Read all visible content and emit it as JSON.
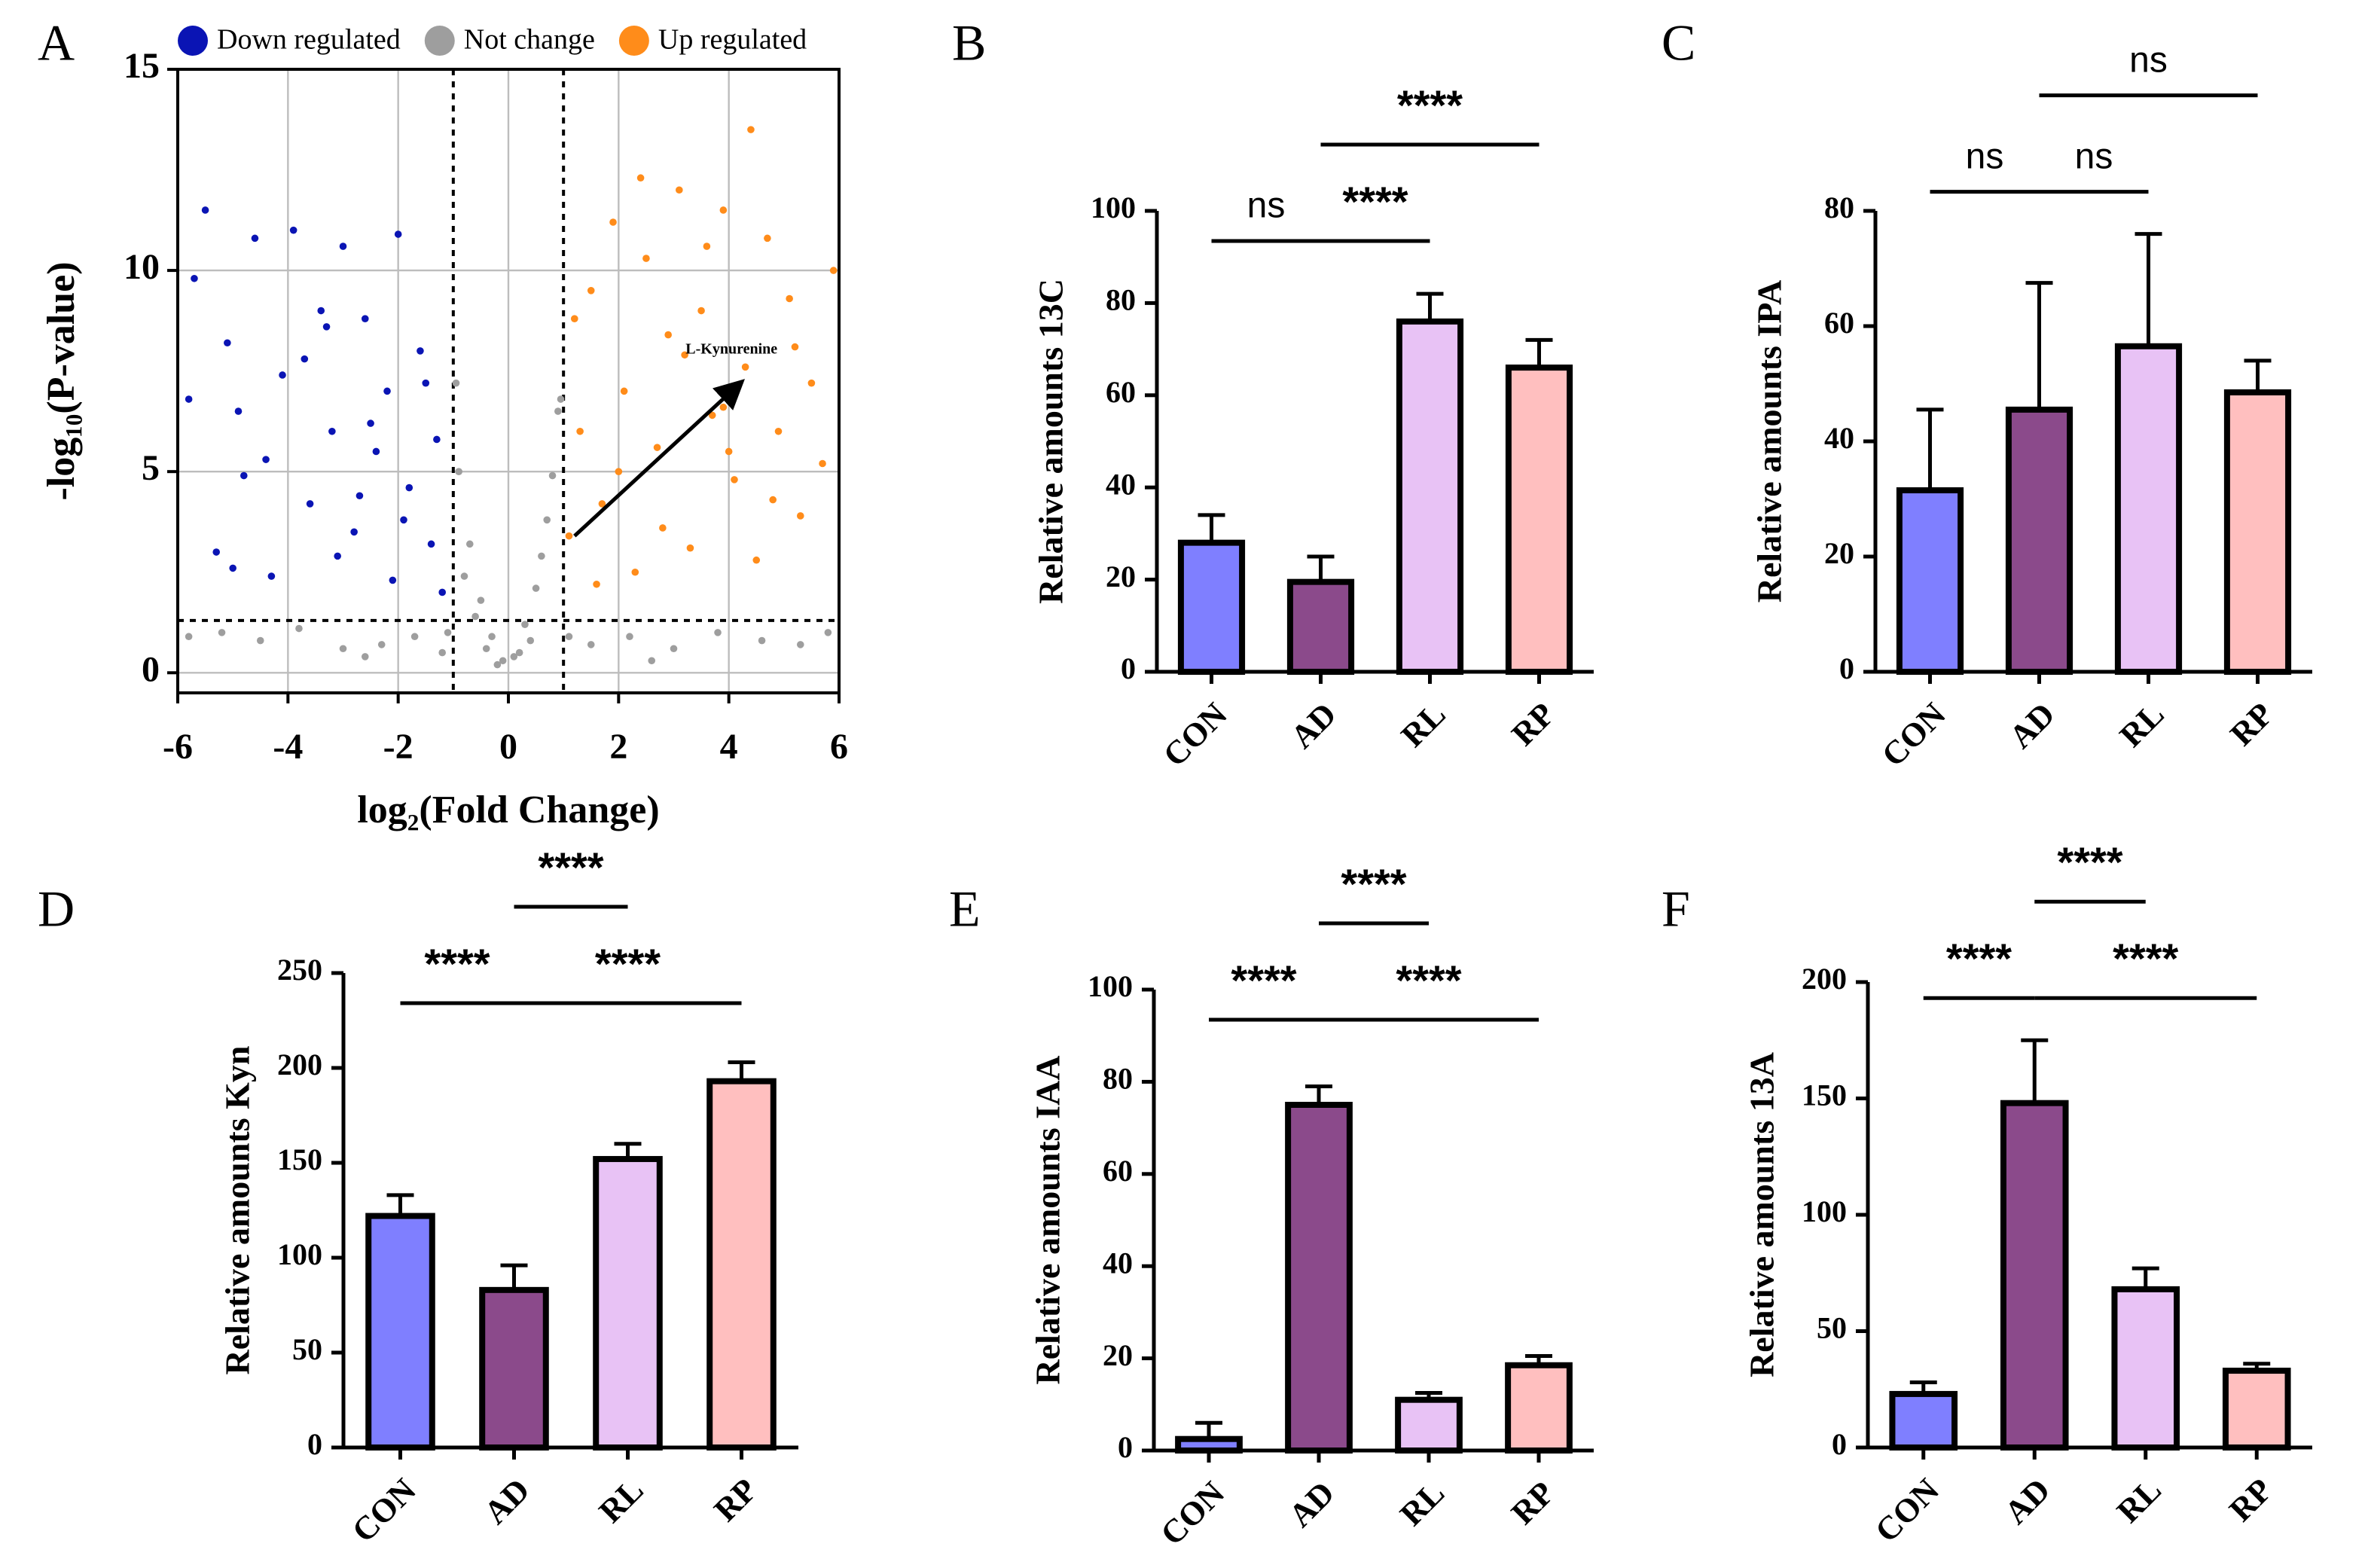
{
  "chart_data": [
    {
      "type": "scatter",
      "panel_label": "A",
      "x_label": "log₂(Fold Change)",
      "y_label": "-log₁₀(P-value)",
      "xlim": [
        -6,
        6
      ],
      "xticks": [
        -6,
        -4,
        -2,
        0,
        2,
        4,
        6
      ],
      "ylim": [
        -0.5,
        15
      ],
      "yticks": [
        0,
        5,
        10,
        15
      ],
      "grid": true,
      "legend": "top",
      "thresholds": {
        "x": [
          -1,
          1
        ],
        "y": 1.3
      },
      "annotation": {
        "text": "L-Kynurenine",
        "x": 1.2,
        "y": 3.4,
        "arrow_to": [
          4.2,
          7.2
        ]
      },
      "series": [
        {
          "name": "Down regulated",
          "color": "#0a14b4",
          "x": [
            -5.7,
            -5.5,
            -5.3,
            -5.1,
            -4.9,
            -4.6,
            -4.3,
            -4.1,
            -3.9,
            -3.6,
            -3.4,
            -3.2,
            -3.0,
            -2.8,
            -2.6,
            -2.4,
            -2.2,
            -2.0,
            -1.8,
            -1.6,
            -1.4,
            -1.2,
            -5.8,
            -5.0,
            -4.4,
            -3.7,
            -3.1,
            -2.5,
            -1.9,
            -1.3,
            -2.7,
            -2.1,
            -1.5,
            -3.3,
            -4.8
          ],
          "values": [
            9.8,
            11.5,
            3.0,
            8.2,
            6.5,
            10.8,
            2.4,
            7.4,
            11.0,
            4.2,
            9.0,
            6.0,
            10.6,
            3.5,
            8.8,
            5.5,
            7.0,
            10.9,
            4.6,
            8.0,
            3.2,
            2.0,
            6.8,
            2.6,
            5.3,
            7.8,
            2.9,
            6.2,
            3.8,
            5.8,
            4.4,
            2.3,
            7.2,
            8.6,
            4.9
          ]
        },
        {
          "name": "Not change",
          "color": "#9e9e9e",
          "x": [
            -5.8,
            -5.2,
            -4.5,
            -3.8,
            -3.0,
            -2.3,
            -1.7,
            -1.2,
            -0.9,
            -0.7,
            -0.5,
            -0.3,
            -0.1,
            0.1,
            0.3,
            0.5,
            0.7,
            0.9,
            -0.8,
            -0.6,
            -0.4,
            0.4,
            0.6,
            0.8,
            1.5,
            2.2,
            3.0,
            3.8,
            4.6,
            5.3,
            5.8,
            -0.95,
            0.95,
            -0.2,
            0.2,
            -1.1,
            1.1,
            -2.6,
            2.6
          ],
          "values": [
            0.9,
            1.0,
            0.8,
            1.1,
            0.6,
            0.7,
            0.9,
            0.5,
            5.0,
            3.2,
            1.8,
            0.9,
            0.3,
            0.4,
            1.2,
            2.1,
            3.8,
            6.5,
            2.4,
            1.4,
            0.6,
            0.8,
            2.9,
            4.9,
            0.7,
            0.9,
            0.6,
            1.0,
            0.8,
            0.7,
            1.0,
            7.2,
            6.8,
            0.2,
            0.5,
            1.0,
            0.9,
            0.4,
            0.3
          ]
        },
        {
          "name": "Up regulated",
          "color": "#ff8c1a",
          "x": [
            1.1,
            1.3,
            1.5,
            1.7,
            1.9,
            2.1,
            2.3,
            2.5,
            2.7,
            2.9,
            3.1,
            3.3,
            3.5,
            3.7,
            3.9,
            4.1,
            4.3,
            4.5,
            4.7,
            4.9,
            5.1,
            5.3,
            5.5,
            5.7,
            5.9,
            1.2,
            1.6,
            2.0,
            2.4,
            2.8,
            3.2,
            3.6,
            4.0,
            4.4,
            4.8,
            5.2,
            3.9
          ],
          "values": [
            3.4,
            6.0,
            9.5,
            4.2,
            11.2,
            7.0,
            2.5,
            10.3,
            5.6,
            8.4,
            12.0,
            3.1,
            9.0,
            6.4,
            11.5,
            4.8,
            7.6,
            2.8,
            10.8,
            6.0,
            9.3,
            3.9,
            7.2,
            5.2,
            10.0,
            8.8,
            2.2,
            5.0,
            12.3,
            3.6,
            7.9,
            10.6,
            5.5,
            13.5,
            4.3,
            8.1,
            6.6
          ]
        }
      ]
    },
    {
      "type": "bar",
      "panel_label": "B",
      "y_label": "Relative amounts 13C",
      "categories": [
        "CON",
        "AD",
        "RL",
        "RP"
      ],
      "values": [
        28,
        19.5,
        76,
        66
      ],
      "errors": [
        6,
        5.5,
        6,
        6
      ],
      "colors": [
        "#7f7fff",
        "#8b4a8b",
        "#e8c2f5",
        "#ffbfbf"
      ],
      "ylim": [
        0,
        100
      ],
      "yticks": [
        0,
        20,
        40,
        60,
        80,
        100
      ],
      "significance": [
        {
          "text": "ns",
          "from": "CON",
          "to": "AD"
        },
        {
          "text": "****",
          "from": "AD",
          "to": "RL"
        },
        {
          "text": "****",
          "from": "AD",
          "to": "RP"
        }
      ]
    },
    {
      "type": "bar",
      "panel_label": "C",
      "y_label": "Relative amounts IPA",
      "categories": [
        "CON",
        "AD",
        "RL",
        "RP"
      ],
      "values": [
        31.5,
        45.5,
        56.5,
        48.5
      ],
      "errors": [
        14,
        22,
        19.5,
        5.5
      ],
      "colors": [
        "#7f7fff",
        "#8b4a8b",
        "#e8c2f5",
        "#ffbfbf"
      ],
      "ylim": [
        0,
        80
      ],
      "yticks": [
        0,
        20,
        40,
        60,
        80
      ],
      "significance": [
        {
          "text": "ns",
          "from": "CON",
          "to": "AD"
        },
        {
          "text": "ns",
          "from": "AD",
          "to": "RL"
        },
        {
          "text": "ns",
          "from": "AD",
          "to": "RP"
        }
      ]
    },
    {
      "type": "bar",
      "panel_label": "D",
      "y_label": "Relative amounts Kyn",
      "categories": [
        "CON",
        "AD",
        "RL",
        "RP"
      ],
      "values": [
        122,
        83,
        152,
        193
      ],
      "errors": [
        11,
        13,
        8,
        10
      ],
      "colors": [
        "#7f7fff",
        "#8b4a8b",
        "#e8c2f5",
        "#ffbfbf"
      ],
      "ylim": [
        0,
        250
      ],
      "yticks": [
        0,
        50,
        100,
        150,
        200,
        250
      ],
      "significance": [
        {
          "text": "****",
          "from": "CON",
          "to": "AD"
        },
        {
          "text": "****",
          "from": "AD",
          "to": "RP"
        },
        {
          "text": "****",
          "from": "AD",
          "to": "RL"
        }
      ]
    },
    {
      "type": "bar",
      "panel_label": "E",
      "y_label": "Relative amounts IAA",
      "categories": [
        "CON",
        "AD",
        "RL",
        "RP"
      ],
      "values": [
        2.5,
        75,
        11,
        18.5
      ],
      "errors": [
        3.5,
        4,
        1.5,
        2
      ],
      "colors": [
        "#7f7fff",
        "#8b4a8b",
        "#e8c2f5",
        "#ffbfbf"
      ],
      "ylim": [
        0,
        100
      ],
      "yticks": [
        0,
        20,
        40,
        60,
        80,
        100
      ],
      "significance": [
        {
          "text": "****",
          "from": "CON",
          "to": "AD"
        },
        {
          "text": "****",
          "from": "AD",
          "to": "RP"
        },
        {
          "text": "****",
          "from": "AD",
          "to": "RL"
        }
      ]
    },
    {
      "type": "bar",
      "panel_label": "F",
      "y_label": "Relative amounts 13A",
      "categories": [
        "CON",
        "AD",
        "RL",
        "RP"
      ],
      "values": [
        23,
        148,
        68,
        33
      ],
      "errors": [
        5,
        27,
        9,
        3
      ],
      "colors": [
        "#7f7fff",
        "#8b4a8b",
        "#e8c2f5",
        "#ffbfbf"
      ],
      "ylim": [
        0,
        200
      ],
      "yticks": [
        0,
        50,
        100,
        150,
        200
      ],
      "significance": [
        {
          "text": "****",
          "from": "CON",
          "to": "AD"
        },
        {
          "text": "****",
          "from": "AD",
          "to": "RP"
        },
        {
          "text": "****",
          "from": "AD",
          "to": "RL"
        }
      ]
    }
  ]
}
